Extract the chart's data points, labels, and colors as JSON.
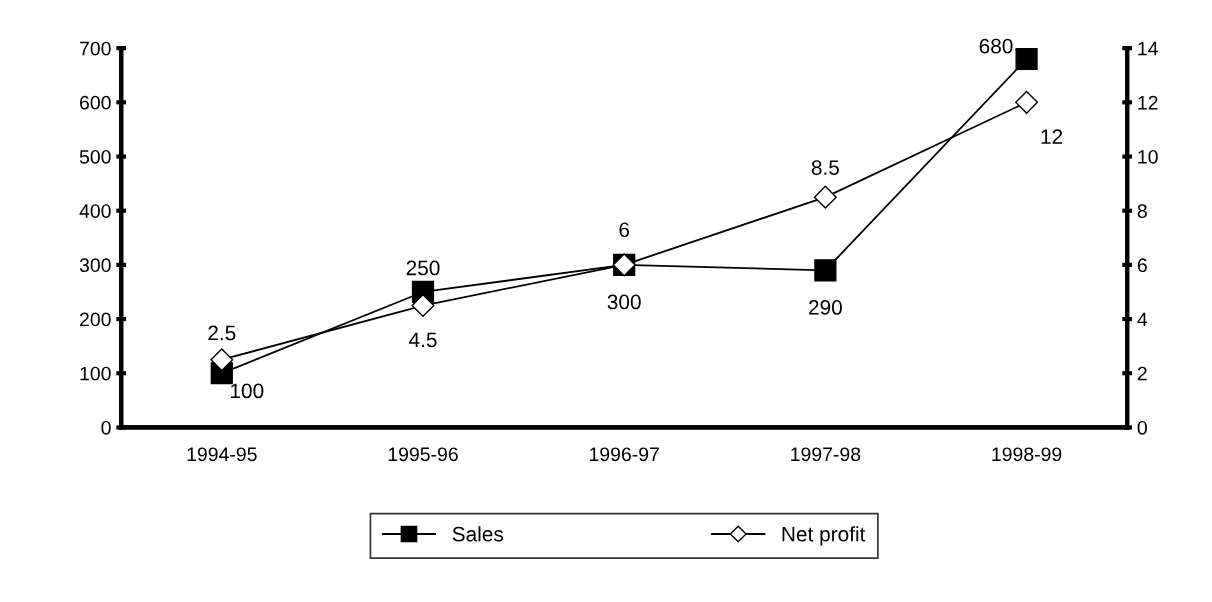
{
  "chart_data": {
    "type": "line",
    "categories": [
      "1994-95",
      "1995-96",
      "1996-97",
      "1997-98",
      "1998-99"
    ],
    "series": [
      {
        "name": "Sales",
        "color": "#000000",
        "marker": "square",
        "values": [
          100,
          250,
          300,
          290,
          680
        ]
      },
      {
        "name": "Net profit",
        "color": "#000000",
        "marker": "diamond",
        "axis": "y2",
        "values": [
          2.5,
          4.5,
          6,
          8.5,
          12
        ]
      }
    ],
    "ylim": [
      0,
      700
    ],
    "yticks": [
      0,
      100,
      200,
      300,
      400,
      500,
      600,
      700
    ],
    "y2lim": [
      0,
      14
    ],
    "y2ticks": [
      0,
      2,
      4,
      6,
      8,
      10,
      12,
      14
    ],
    "data_labels": true,
    "legend": "bottom",
    "grid": false,
    "line_style": "solid"
  }
}
